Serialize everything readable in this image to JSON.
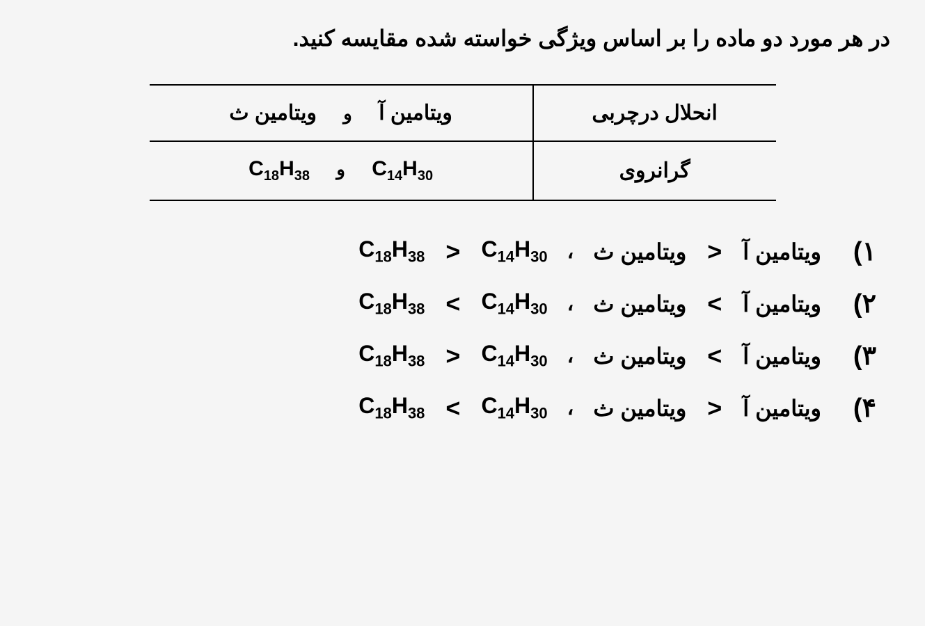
{
  "question": "در هر مورد دو ماده را بر اساس ویژگی خواسته شده مقایسه کنید.",
  "table": {
    "rows": [
      {
        "property": "انحلال درچربی",
        "item1": "ویتامین آ",
        "connector": "و",
        "item2": "ویتامین ث"
      },
      {
        "property": "گرانروی",
        "item1_c": "C",
        "item1_s1": "14",
        "item1_h": "H",
        "item1_s2": "30",
        "connector": "و",
        "item2_c": "C",
        "item2_s1": "18",
        "item2_h": "H",
        "item2_s2": "38"
      }
    ]
  },
  "options": [
    {
      "number": "۱)",
      "vit_a": "ویتامین آ",
      "cmp1": ">",
      "vit_c": "ویتامین ث",
      "sep": "،",
      "f1_c": "C",
      "f1_s1": "14",
      "f1_h": "H",
      "f1_s2": "30",
      "cmp2": ">",
      "f2_c": "C",
      "f2_s1": "18",
      "f2_h": "H",
      "f2_s2": "38"
    },
    {
      "number": "۲)",
      "vit_a": "ویتامین آ",
      "cmp1": "<",
      "vit_c": "ویتامین ث",
      "sep": "،",
      "f1_c": "C",
      "f1_s1": "14",
      "f1_h": "H",
      "f1_s2": "30",
      "cmp2": "<",
      "f2_c": "C",
      "f2_s1": "18",
      "f2_h": "H",
      "f2_s2": "38"
    },
    {
      "number": "۳)",
      "vit_a": "ویتامین آ",
      "cmp1": "<",
      "vit_c": "ویتامین ث",
      "sep": "،",
      "f1_c": "C",
      "f1_s1": "14",
      "f1_h": "H",
      "f1_s2": "30",
      "cmp2": ">",
      "f2_c": "C",
      "f2_s1": "18",
      "f2_h": "H",
      "f2_s2": "38"
    },
    {
      "number": "۴)",
      "vit_a": "ویتامین آ",
      "cmp1": ">",
      "vit_c": "ویتامین ث",
      "sep": "،",
      "f1_c": "C",
      "f1_s1": "14",
      "f1_h": "H",
      "f1_s2": "30",
      "cmp2": "<",
      "f2_c": "C",
      "f2_s1": "18",
      "f2_h": "H",
      "f2_s2": "38"
    }
  ],
  "colors": {
    "background": "#f5f5f5",
    "text": "#000000",
    "border": "#000000"
  },
  "typography": {
    "question_fontsize": 32,
    "table_fontsize": 30,
    "option_fontsize": 32,
    "font_family": "Tahoma, Arial"
  }
}
